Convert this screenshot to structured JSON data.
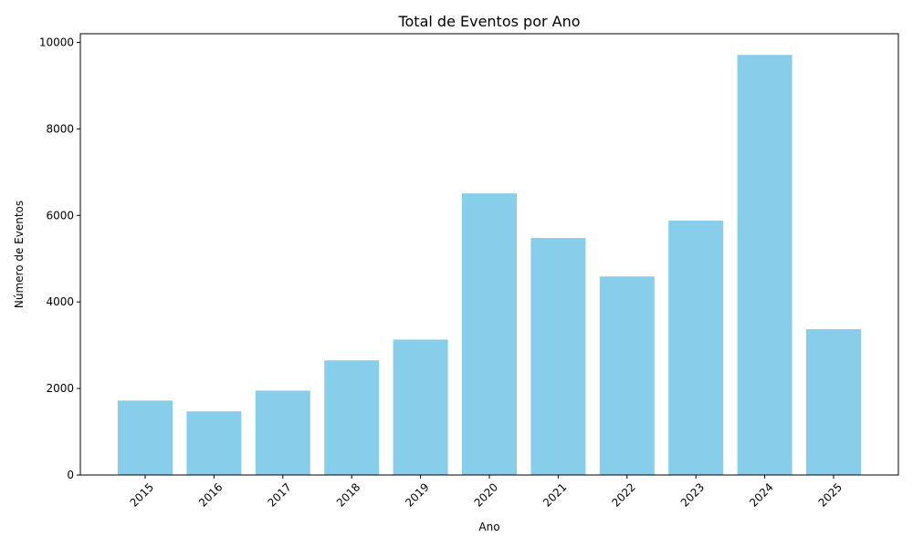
{
  "chart_data": {
    "type": "bar",
    "title": "Total de Eventos por Ano",
    "xlabel": "Ano",
    "ylabel": "Número de Eventos",
    "categories": [
      "2015",
      "2016",
      "2017",
      "2018",
      "2019",
      "2020",
      "2021",
      "2022",
      "2023",
      "2024",
      "2025"
    ],
    "values": [
      1720,
      1470,
      1950,
      2650,
      3130,
      6510,
      5480,
      4590,
      5880,
      9710,
      3370
    ],
    "ylim": [
      0,
      10200
    ],
    "yticks": [
      0,
      2000,
      4000,
      6000,
      8000,
      10000
    ],
    "grid": false,
    "bar_color": "#87CEEB"
  }
}
